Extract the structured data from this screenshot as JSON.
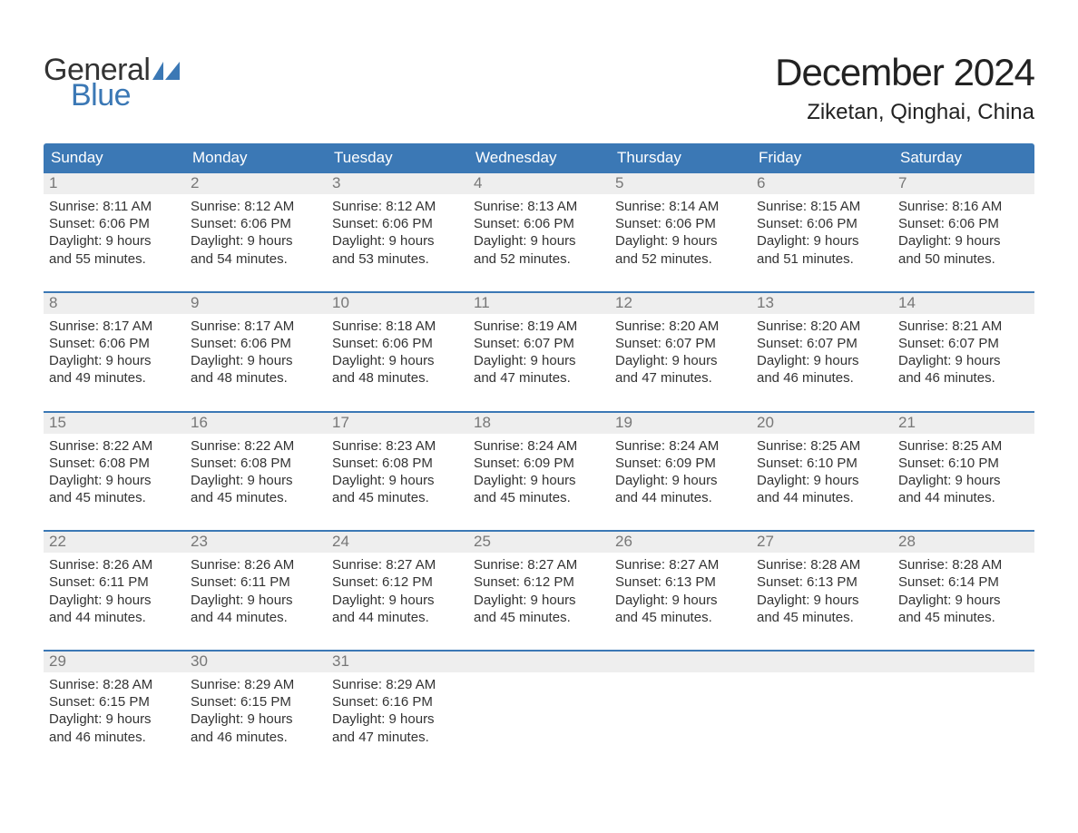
{
  "logo": {
    "word1": "General",
    "word2": "Blue",
    "text_color": "#333333",
    "blue_color": "#3b78b5"
  },
  "title": "December 2024",
  "location": "Ziketan, Qinghai, China",
  "colors": {
    "header_bg": "#3b78b5",
    "header_text": "#ffffff",
    "daynum_bg": "#eeeeee",
    "daynum_text": "#777777",
    "body_text": "#333333",
    "week_border": "#3b78b5",
    "page_bg": "#ffffff"
  },
  "fonts": {
    "title_size_pt": 32,
    "location_size_pt": 18,
    "weekday_size_pt": 13,
    "daynum_size_pt": 13,
    "body_size_pt": 11
  },
  "weekdays": [
    "Sunday",
    "Monday",
    "Tuesday",
    "Wednesday",
    "Thursday",
    "Friday",
    "Saturday"
  ],
  "weeks": [
    [
      {
        "n": "1",
        "sunrise": "8:11 AM",
        "sunset": "6:06 PM",
        "day_h": "9",
        "day_m": "55"
      },
      {
        "n": "2",
        "sunrise": "8:12 AM",
        "sunset": "6:06 PM",
        "day_h": "9",
        "day_m": "54"
      },
      {
        "n": "3",
        "sunrise": "8:12 AM",
        "sunset": "6:06 PM",
        "day_h": "9",
        "day_m": "53"
      },
      {
        "n": "4",
        "sunrise": "8:13 AM",
        "sunset": "6:06 PM",
        "day_h": "9",
        "day_m": "52"
      },
      {
        "n": "5",
        "sunrise": "8:14 AM",
        "sunset": "6:06 PM",
        "day_h": "9",
        "day_m": "52"
      },
      {
        "n": "6",
        "sunrise": "8:15 AM",
        "sunset": "6:06 PM",
        "day_h": "9",
        "day_m": "51"
      },
      {
        "n": "7",
        "sunrise": "8:16 AM",
        "sunset": "6:06 PM",
        "day_h": "9",
        "day_m": "50"
      }
    ],
    [
      {
        "n": "8",
        "sunrise": "8:17 AM",
        "sunset": "6:06 PM",
        "day_h": "9",
        "day_m": "49"
      },
      {
        "n": "9",
        "sunrise": "8:17 AM",
        "sunset": "6:06 PM",
        "day_h": "9",
        "day_m": "48"
      },
      {
        "n": "10",
        "sunrise": "8:18 AM",
        "sunset": "6:06 PM",
        "day_h": "9",
        "day_m": "48"
      },
      {
        "n": "11",
        "sunrise": "8:19 AM",
        "sunset": "6:07 PM",
        "day_h": "9",
        "day_m": "47"
      },
      {
        "n": "12",
        "sunrise": "8:20 AM",
        "sunset": "6:07 PM",
        "day_h": "9",
        "day_m": "47"
      },
      {
        "n": "13",
        "sunrise": "8:20 AM",
        "sunset": "6:07 PM",
        "day_h": "9",
        "day_m": "46"
      },
      {
        "n": "14",
        "sunrise": "8:21 AM",
        "sunset": "6:07 PM",
        "day_h": "9",
        "day_m": "46"
      }
    ],
    [
      {
        "n": "15",
        "sunrise": "8:22 AM",
        "sunset": "6:08 PM",
        "day_h": "9",
        "day_m": "45"
      },
      {
        "n": "16",
        "sunrise": "8:22 AM",
        "sunset": "6:08 PM",
        "day_h": "9",
        "day_m": "45"
      },
      {
        "n": "17",
        "sunrise": "8:23 AM",
        "sunset": "6:08 PM",
        "day_h": "9",
        "day_m": "45"
      },
      {
        "n": "18",
        "sunrise": "8:24 AM",
        "sunset": "6:09 PM",
        "day_h": "9",
        "day_m": "45"
      },
      {
        "n": "19",
        "sunrise": "8:24 AM",
        "sunset": "6:09 PM",
        "day_h": "9",
        "day_m": "44"
      },
      {
        "n": "20",
        "sunrise": "8:25 AM",
        "sunset": "6:10 PM",
        "day_h": "9",
        "day_m": "44"
      },
      {
        "n": "21",
        "sunrise": "8:25 AM",
        "sunset": "6:10 PM",
        "day_h": "9",
        "day_m": "44"
      }
    ],
    [
      {
        "n": "22",
        "sunrise": "8:26 AM",
        "sunset": "6:11 PM",
        "day_h": "9",
        "day_m": "44"
      },
      {
        "n": "23",
        "sunrise": "8:26 AM",
        "sunset": "6:11 PM",
        "day_h": "9",
        "day_m": "44"
      },
      {
        "n": "24",
        "sunrise": "8:27 AM",
        "sunset": "6:12 PM",
        "day_h": "9",
        "day_m": "44"
      },
      {
        "n": "25",
        "sunrise": "8:27 AM",
        "sunset": "6:12 PM",
        "day_h": "9",
        "day_m": "45"
      },
      {
        "n": "26",
        "sunrise": "8:27 AM",
        "sunset": "6:13 PM",
        "day_h": "9",
        "day_m": "45"
      },
      {
        "n": "27",
        "sunrise": "8:28 AM",
        "sunset": "6:13 PM",
        "day_h": "9",
        "day_m": "45"
      },
      {
        "n": "28",
        "sunrise": "8:28 AM",
        "sunset": "6:14 PM",
        "day_h": "9",
        "day_m": "45"
      }
    ],
    [
      {
        "n": "29",
        "sunrise": "8:28 AM",
        "sunset": "6:15 PM",
        "day_h": "9",
        "day_m": "46"
      },
      {
        "n": "30",
        "sunrise": "8:29 AM",
        "sunset": "6:15 PM",
        "day_h": "9",
        "day_m": "46"
      },
      {
        "n": "31",
        "sunrise": "8:29 AM",
        "sunset": "6:16 PM",
        "day_h": "9",
        "day_m": "47"
      },
      null,
      null,
      null,
      null
    ]
  ],
  "labels": {
    "sunrise": "Sunrise:",
    "sunset": "Sunset:",
    "daylight": "Daylight:",
    "hours": "hours",
    "and": "and",
    "minutes": "minutes."
  }
}
